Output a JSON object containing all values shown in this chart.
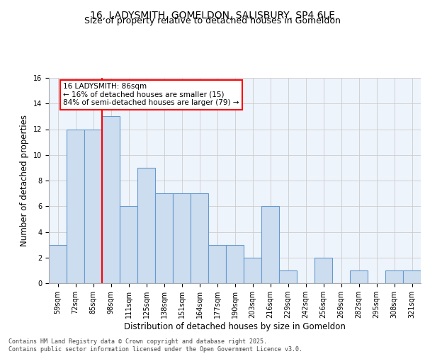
{
  "title_line1": "16, LADYSMITH, GOMELDON, SALISBURY, SP4 6LE",
  "title_line2": "Size of property relative to detached houses in Gomeldon",
  "xlabel": "Distribution of detached houses by size in Gomeldon",
  "ylabel": "Number of detached properties",
  "bar_labels": [
    "59sqm",
    "72sqm",
    "85sqm",
    "98sqm",
    "111sqm",
    "125sqm",
    "138sqm",
    "151sqm",
    "164sqm",
    "177sqm",
    "190sqm",
    "203sqm",
    "216sqm",
    "229sqm",
    "242sqm",
    "256sqm",
    "269sqm",
    "282sqm",
    "295sqm",
    "308sqm",
    "321sqm"
  ],
  "bar_values": [
    3,
    12,
    12,
    13,
    6,
    9,
    7,
    7,
    7,
    3,
    3,
    2,
    6,
    1,
    0,
    2,
    0,
    1,
    0,
    1,
    1
  ],
  "bar_color": "#CCDDF0",
  "bar_edgecolor": "#6699CC",
  "red_line_index": 2,
  "annotation_text": "16 LADYSMITH: 86sqm\n← 16% of detached houses are smaller (15)\n84% of semi-detached houses are larger (79) →",
  "annotation_box_color": "white",
  "annotation_box_edgecolor": "red",
  "vline_color": "red",
  "ylim": [
    0,
    16
  ],
  "yticks": [
    0,
    2,
    4,
    6,
    8,
    10,
    12,
    14,
    16
  ],
  "grid_color": "#CCCCCC",
  "background_color": "#EEF4FB",
  "footer_text": "Contains HM Land Registry data © Crown copyright and database right 2025.\nContains public sector information licensed under the Open Government Licence v3.0.",
  "title_fontsize": 10,
  "subtitle_fontsize": 9,
  "xlabel_fontsize": 8.5,
  "ylabel_fontsize": 8.5,
  "tick_fontsize": 7,
  "annotation_fontsize": 7.5,
  "footer_fontsize": 6
}
